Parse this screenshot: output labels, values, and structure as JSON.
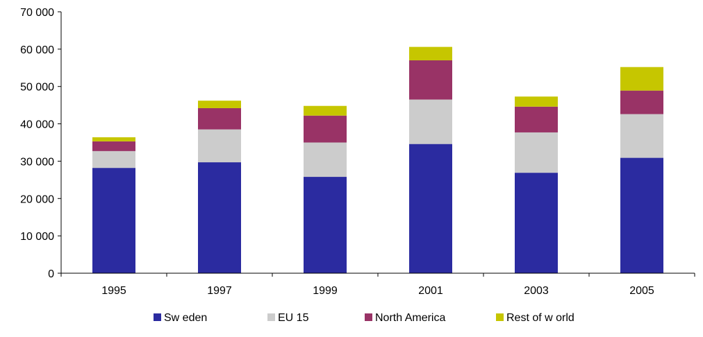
{
  "chart_data": {
    "type": "bar",
    "stacked": true,
    "title": "",
    "xlabel": "",
    "ylabel": "",
    "categories": [
      "1995",
      "1997",
      "1999",
      "2001",
      "2003",
      "2005"
    ],
    "ylim": [
      0,
      70000
    ],
    "yticks": [
      0,
      10000,
      20000,
      30000,
      40000,
      50000,
      60000,
      70000
    ],
    "ytick_labels": [
      "0",
      "10 000",
      "20 000",
      "30 000",
      "40 000",
      "50 000",
      "60 000",
      "70 000"
    ],
    "grid": false,
    "legend_position": "bottom",
    "series": [
      {
        "name": "Sw eden",
        "color": "#2B2BA0",
        "values": [
          28200,
          29700,
          25800,
          34600,
          26900,
          30900
        ]
      },
      {
        "name": "EU 15",
        "color": "#CCCCCC",
        "values": [
          4500,
          8800,
          9200,
          11900,
          10800,
          11700
        ]
      },
      {
        "name": "North America",
        "color": "#993366",
        "values": [
          2600,
          5700,
          7200,
          10500,
          6900,
          6300
        ]
      },
      {
        "name": "Rest of w orld",
        "color": "#C6C600",
        "values": [
          1100,
          2000,
          2600,
          3600,
          2700,
          6300
        ]
      }
    ]
  }
}
